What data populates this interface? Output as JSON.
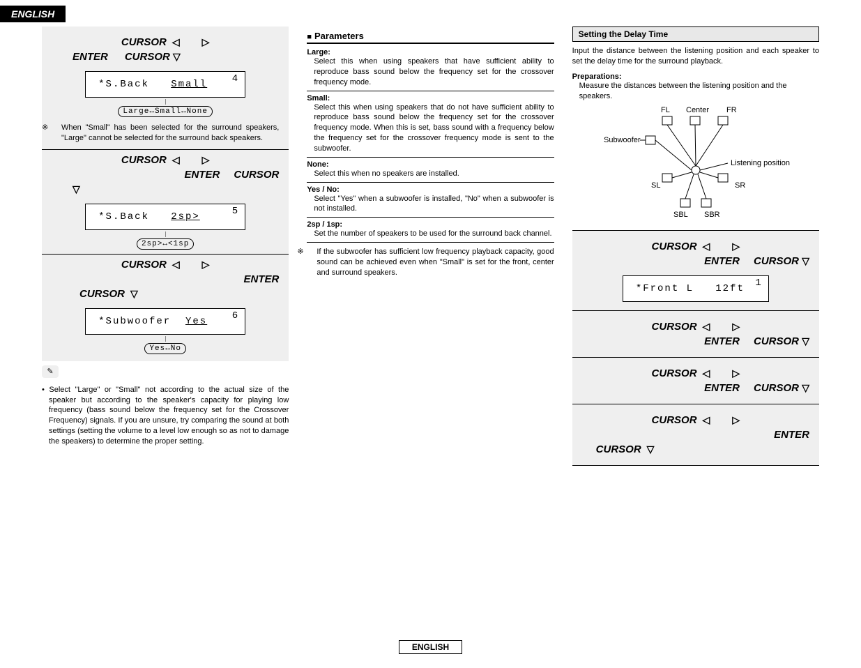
{
  "lang_tab": "ENGLISH",
  "footer": "ENGLISH",
  "cursor_word": "CURSOR",
  "enter_word": "ENTER",
  "triangles": {
    "left": "◁",
    "right": "▷",
    "down": "▽"
  },
  "left_col": {
    "block1": {
      "lcd_corner": "4",
      "lcd_text": "*S.Back",
      "lcd_value": "Small",
      "toggle": "Large↔Small↔None",
      "note_prefix": "※",
      "note": "When \"Small\" has been selected for the surround speakers, \"Large\" cannot be selected for the surround back speakers."
    },
    "block2": {
      "lcd_corner": "5",
      "lcd_text": "*S.Back",
      "lcd_value": "2sp>",
      "toggle": "2sp>↔<1sp"
    },
    "block3": {
      "lcd_corner": "6",
      "lcd_text": "*Subwoofer",
      "lcd_value": "Yes",
      "toggle": "Yes↔No"
    },
    "bottom_note_bullet": "•",
    "bottom_note": "Select \"Large\" or \"Small\" not according to the actual size of the speaker but according to the speaker's capacity for playing low frequency (bass sound below the frequency set for the Crossover Frequency) signals. If you are unsure, try comparing the sound at both settings (setting the volume to a level low enough so as not to damage the speakers) to determine the proper setting."
  },
  "mid_col": {
    "title": "Parameters",
    "params": [
      {
        "label": "Large:",
        "text": "Select this when using speakers that have sufficient ability to reproduce bass sound below the frequency set for the crossover frequency mode."
      },
      {
        "label": "Small:",
        "text": "Select this when using speakers that do not have sufficient ability to reproduce bass sound below the frequency set for the crossover frequency mode. When this is set, bass sound with a frequency below the frequency set for the crossover frequency mode is sent to the subwoofer."
      },
      {
        "label": "None:",
        "text": "Select this when no speakers are installed."
      },
      {
        "label": "Yes / No:",
        "text": "Select \"Yes\" when a subwoofer is installed, \"No\" when a subwoofer is not installed."
      },
      {
        "label": "2sp / 1sp:",
        "text": "Set the number of speakers to be used for the surround back channel."
      }
    ],
    "note_prefix": "※",
    "note": "If the subwoofer has sufficient low frequency playback capacity, good sound can be achieved even when \"Small\" is set for the front, center and surround speakers."
  },
  "right_col": {
    "header": "Setting the Delay Time",
    "intro": "Input the distance between the listening position and each speaker to set the delay time for the surround playback.",
    "prep_label": "Preparations:",
    "prep_text": "Measure the distances between the listening position and the speakers.",
    "diagram_labels": {
      "fl": "FL",
      "center": "Center",
      "fr": "FR",
      "subwoofer": "Subwoofer",
      "listening": "Listening position",
      "sl": "SL",
      "sr": "SR",
      "sbl": "SBL",
      "sbr": "SBR"
    },
    "lcd_corner": "1",
    "lcd_text": "*Front L",
    "lcd_value": "12ft"
  }
}
